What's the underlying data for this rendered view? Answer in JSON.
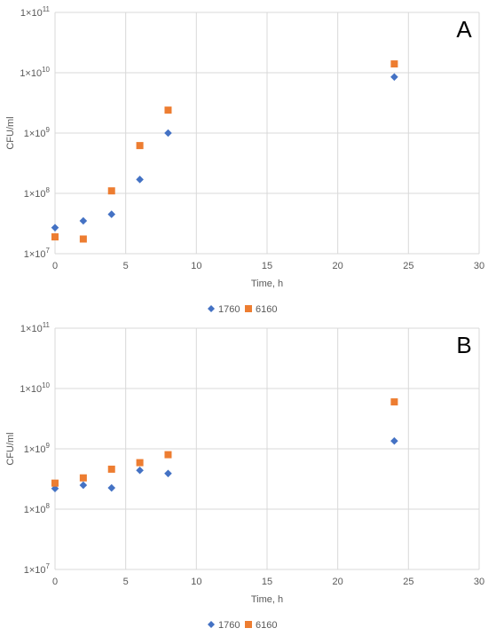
{
  "chart_data": [
    {
      "type": "scatter",
      "panel_label": "A",
      "xlabel": "Time, h",
      "ylabel": "CFU/ml",
      "xlim": [
        0,
        30
      ],
      "ylim": [
        10000000,
        100000000000
      ],
      "yscale": "log",
      "x_ticks": [
        "0",
        "5",
        "10",
        "15",
        "20",
        "25",
        "30"
      ],
      "y_ticks": [
        {
          "mantissa": "1×10",
          "exp": "7"
        },
        {
          "mantissa": "1×10",
          "exp": "8"
        },
        {
          "mantissa": "1×10",
          "exp": "9"
        },
        {
          "mantissa": "1×10",
          "exp": "10"
        },
        {
          "mantissa": "1×10",
          "exp": "11"
        }
      ],
      "grid": true,
      "legend_position": "bottom",
      "series": [
        {
          "name": "1760",
          "color": "#4472c4",
          "marker": "diamond",
          "points": [
            [
              0,
              27000000
            ],
            [
              2,
              35000000
            ],
            [
              4,
              45000000
            ],
            [
              6,
              170000000
            ],
            [
              8,
              1000000000
            ],
            [
              24,
              8500000000
            ]
          ]
        },
        {
          "name": "6160",
          "color": "#ed7d31",
          "marker": "square",
          "points": [
            [
              0,
              19000000
            ],
            [
              2,
              17500000
            ],
            [
              4,
              110000000
            ],
            [
              6,
              620000000
            ],
            [
              8,
              2400000000
            ],
            [
              24,
              14000000000
            ]
          ]
        }
      ]
    },
    {
      "type": "scatter",
      "panel_label": "B",
      "xlabel": "Time, h",
      "ylabel": "CFU/ml",
      "xlim": [
        0,
        30
      ],
      "ylim": [
        10000000,
        100000000000
      ],
      "yscale": "log",
      "x_ticks": [
        "0",
        "5",
        "10",
        "15",
        "20",
        "25",
        "30"
      ],
      "y_ticks": [
        {
          "mantissa": "1×10",
          "exp": "7"
        },
        {
          "mantissa": "1×10",
          "exp": "8"
        },
        {
          "mantissa": "1×10",
          "exp": "9"
        },
        {
          "mantissa": "1×10",
          "exp": "10"
        },
        {
          "mantissa": "1×10",
          "exp": "11"
        }
      ],
      "grid": true,
      "legend_position": "bottom",
      "series": [
        {
          "name": "1760",
          "color": "#4472c4",
          "marker": "diamond",
          "points": [
            [
              0,
              220000000
            ],
            [
              2,
              250000000
            ],
            [
              4,
              225000000
            ],
            [
              6,
              440000000
            ],
            [
              8,
              390000000
            ],
            [
              24,
              1350000000
            ]
          ]
        },
        {
          "name": "6160",
          "color": "#ed7d31",
          "marker": "square",
          "points": [
            [
              0,
              270000000
            ],
            [
              2,
              330000000
            ],
            [
              4,
              460000000
            ],
            [
              6,
              590000000
            ],
            [
              8,
              800000000
            ],
            [
              24,
              6000000000
            ]
          ]
        }
      ]
    }
  ]
}
